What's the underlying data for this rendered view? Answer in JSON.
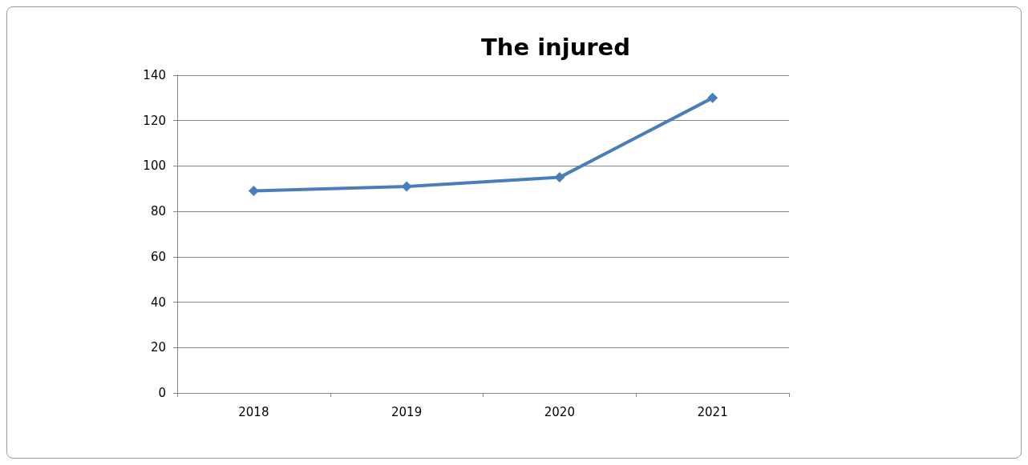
{
  "chart_data": {
    "type": "line",
    "title": "The injured",
    "categories": [
      "2018",
      "2019",
      "2020",
      "2021"
    ],
    "series": [
      {
        "color": "#4a7ebb",
        "values": [
          89,
          91,
          95,
          130
        ]
      }
    ],
    "ylim": [
      0,
      140
    ],
    "yticks": [
      0,
      20,
      40,
      60,
      80,
      100,
      120,
      140
    ],
    "grid": "y",
    "marker": "diamond",
    "line_style": "solid"
  }
}
